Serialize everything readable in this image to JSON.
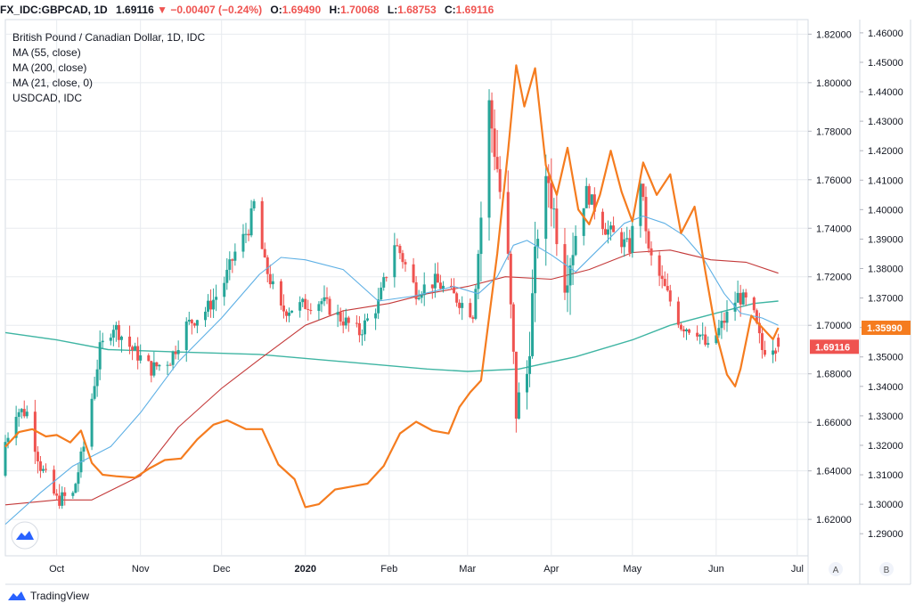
{
  "header": {
    "symbol": "FX_IDC:GBPCAD, 1D",
    "last": "1.69116",
    "change": "−0.00407 (−0.24%)",
    "o_label": "O:",
    "o_value": "1.69490",
    "h_label": "H:",
    "h_value": "1.70068",
    "l_label": "L:",
    "l_value": "1.68753",
    "c_label": "C:",
    "c_value": "1.69116"
  },
  "legend": [
    "British Pound / Canadian Dollar, 1D, IDC",
    "MA (55, close)",
    "MA (200, close)",
    "MA (21, close, 0)",
    "USDCAD, IDC"
  ],
  "footer": {
    "brand": "TradingView"
  },
  "axis_buttons": {
    "left": "A",
    "right": "B"
  },
  "colors": {
    "up": "#26a69a",
    "down": "#ef5350",
    "ma55": "#5eb0e5",
    "ma200": "#c43a3a",
    "ma21": "#3fb5a3",
    "usdcad": "#f57c1f",
    "grid": "#e8ebef",
    "last_tag": "#ef5350",
    "usdcad_tag": "#f57c1f"
  },
  "chart_data": {
    "type": "candlestick",
    "title": "British Pound / Canadian Dollar, 1D, IDC",
    "x_tick_labels": [
      "Oct",
      "Nov",
      "Dec",
      "2020",
      "Feb",
      "Mar",
      "Apr",
      "May",
      "Jun",
      "Jul"
    ],
    "x_tick_dates": [
      "2019-10-01",
      "2019-11-01",
      "2019-12-01",
      "2020-01-01",
      "2020-02-01",
      "2020-03-01",
      "2020-04-01",
      "2020-05-01",
      "2020-06-01",
      "2020-07-01"
    ],
    "x_range": [
      "2019-09-12",
      "2020-07-05"
    ],
    "y_axis_A": {
      "ticks": [
        "1.62000",
        "1.64000",
        "1.66000",
        "1.68000",
        "1.70000",
        "1.72000",
        "1.74000",
        "1.76000",
        "1.78000",
        "1.80000",
        "1.82000"
      ],
      "ylim": [
        1.605,
        1.826
      ]
    },
    "y_axis_B": {
      "ticks": [
        "1.29000",
        "1.30000",
        "1.31000",
        "1.32000",
        "1.33000",
        "1.34000",
        "1.35000",
        "1.36000",
        "1.37000",
        "1.38000",
        "1.39000",
        "1.40000",
        "1.41000",
        "1.42000",
        "1.43000",
        "1.44000",
        "1.45000",
        "1.46000"
      ],
      "ylim": [
        1.2825,
        1.4645
      ]
    },
    "last_price_tag": "1.69116",
    "usdcad_last_tag": "1.35990",
    "ohlc_keypoints": [
      [
        "2019-09-12",
        1.638,
        1.652
      ],
      [
        "2019-09-16",
        1.645,
        1.665
      ],
      [
        "2019-09-20",
        1.66,
        1.664
      ],
      [
        "2019-09-25",
        1.655,
        1.642
      ],
      [
        "2019-10-01",
        1.633,
        1.628
      ],
      [
        "2019-10-07",
        1.629,
        1.63
      ],
      [
        "2019-10-11",
        1.642,
        1.65
      ],
      [
        "2019-10-17",
        1.658,
        1.69
      ],
      [
        "2019-10-22",
        1.692,
        1.7
      ],
      [
        "2019-10-29",
        1.695,
        1.69
      ],
      [
        "2019-11-05",
        1.688,
        1.682
      ],
      [
        "2019-11-12",
        1.684,
        1.686
      ],
      [
        "2019-11-18",
        1.693,
        1.7
      ],
      [
        "2019-11-25",
        1.702,
        1.706
      ],
      [
        "2019-12-01",
        1.71,
        1.715
      ],
      [
        "2019-12-06",
        1.725,
        1.73
      ],
      [
        "2019-12-11",
        1.735,
        1.74
      ],
      [
        "2019-12-13",
        1.755,
        1.75
      ],
      [
        "2019-12-17",
        1.738,
        1.725
      ],
      [
        "2019-12-23",
        1.712,
        1.706
      ],
      [
        "2019-12-30",
        1.703,
        1.708
      ],
      [
        "2020-01-07",
        1.713,
        1.71
      ],
      [
        "2020-01-14",
        1.705,
        1.703
      ],
      [
        "2020-01-21",
        1.702,
        1.697
      ],
      [
        "2020-01-28",
        1.701,
        1.709
      ],
      [
        "2020-02-03",
        1.722,
        1.734
      ],
      [
        "2020-02-05",
        1.738,
        1.73
      ],
      [
        "2020-02-11",
        1.718,
        1.714
      ],
      [
        "2020-02-18",
        1.718,
        1.718
      ],
      [
        "2020-02-25",
        1.716,
        1.712
      ],
      [
        "2020-03-03",
        1.713,
        1.705
      ],
      [
        "2020-03-05",
        1.7,
        1.73
      ],
      [
        "2020-03-09",
        1.74,
        1.79
      ],
      [
        "2020-03-12",
        1.775,
        1.765
      ],
      [
        "2020-03-16",
        1.748,
        1.725
      ],
      [
        "2020-03-19",
        1.69,
        1.665
      ],
      [
        "2020-03-23",
        1.674,
        1.68
      ],
      [
        "2020-03-27",
        1.7,
        1.74
      ],
      [
        "2020-03-31",
        1.755,
        1.76
      ],
      [
        "2020-04-06",
        1.735,
        1.72
      ],
      [
        "2020-04-14",
        1.74,
        1.755
      ],
      [
        "2020-04-21",
        1.745,
        1.74
      ],
      [
        "2020-04-30",
        1.738,
        1.732
      ],
      [
        "2020-05-04",
        1.738,
        1.76
      ],
      [
        "2020-05-07",
        1.75,
        1.73
      ],
      [
        "2020-05-13",
        1.725,
        1.715
      ],
      [
        "2020-05-19",
        1.705,
        1.7
      ],
      [
        "2020-05-25",
        1.702,
        1.698
      ],
      [
        "2020-05-29",
        1.688,
        1.69
      ],
      [
        "2020-06-04",
        1.7,
        1.702
      ],
      [
        "2020-06-09",
        1.705,
        1.712
      ],
      [
        "2020-06-14",
        1.713,
        1.708
      ],
      [
        "2020-06-18",
        1.7,
        1.69
      ],
      [
        "2020-06-22",
        1.686,
        1.692
      ],
      [
        "2020-06-24",
        1.6949,
        1.69116
      ]
    ],
    "series": [
      {
        "name": "MA (55, close)",
        "points": [
          [
            "2019-09-12",
            1.618
          ],
          [
            "2019-09-25",
            1.631
          ],
          [
            "2019-10-07",
            1.642
          ],
          [
            "2019-10-21",
            1.65
          ],
          [
            "2019-11-01",
            1.664
          ],
          [
            "2019-11-15",
            1.685
          ],
          [
            "2019-12-01",
            1.703
          ],
          [
            "2019-12-15",
            1.721
          ],
          [
            "2019-12-23",
            1.728
          ],
          [
            "2020-01-01",
            1.727
          ],
          [
            "2020-01-15",
            1.723
          ],
          [
            "2020-01-28",
            1.71
          ],
          [
            "2020-02-10",
            1.712
          ],
          [
            "2020-02-25",
            1.716
          ],
          [
            "2020-03-05",
            1.713
          ],
          [
            "2020-03-12",
            1.72
          ],
          [
            "2020-03-18",
            1.733
          ],
          [
            "2020-03-23",
            1.735
          ],
          [
            "2020-04-01",
            1.729
          ],
          [
            "2020-04-10",
            1.722
          ],
          [
            "2020-04-20",
            1.733
          ],
          [
            "2020-04-28",
            1.742
          ],
          [
            "2020-05-05",
            1.745
          ],
          [
            "2020-05-13",
            1.742
          ],
          [
            "2020-05-20",
            1.737
          ],
          [
            "2020-05-27",
            1.728
          ],
          [
            "2020-06-04",
            1.713
          ],
          [
            "2020-06-10",
            1.705
          ],
          [
            "2020-06-18",
            1.703
          ],
          [
            "2020-06-24",
            1.7
          ]
        ]
      },
      {
        "name": "MA (200, close)",
        "points": [
          [
            "2019-09-12",
            1.626
          ],
          [
            "2019-10-01",
            1.628
          ],
          [
            "2019-10-14",
            1.628
          ],
          [
            "2019-11-01",
            1.638
          ],
          [
            "2019-11-15",
            1.658
          ],
          [
            "2019-12-01",
            1.674
          ],
          [
            "2019-12-15",
            1.686
          ],
          [
            "2020-01-01",
            1.7
          ],
          [
            "2020-01-15",
            1.706
          ],
          [
            "2020-02-01",
            1.709
          ],
          [
            "2020-02-15",
            1.713
          ],
          [
            "2020-03-01",
            1.716
          ],
          [
            "2020-03-15",
            1.72
          ],
          [
            "2020-04-01",
            1.719
          ],
          [
            "2020-04-15",
            1.723
          ],
          [
            "2020-05-01",
            1.73
          ],
          [
            "2020-05-15",
            1.731
          ],
          [
            "2020-05-30",
            1.727
          ],
          [
            "2020-06-12",
            1.726
          ],
          [
            "2020-06-24",
            1.7215
          ]
        ]
      },
      {
        "name": "MA (21, close, 0)",
        "points": [
          [
            "2019-09-12",
            1.697
          ],
          [
            "2019-10-01",
            1.694
          ],
          [
            "2019-10-20",
            1.69
          ],
          [
            "2019-11-15",
            1.689
          ],
          [
            "2019-12-15",
            1.688
          ],
          [
            "2020-01-15",
            1.685
          ],
          [
            "2020-02-15",
            1.682
          ],
          [
            "2020-03-01",
            1.681
          ],
          [
            "2020-03-20",
            1.682
          ],
          [
            "2020-04-10",
            1.687
          ],
          [
            "2020-05-01",
            1.694
          ],
          [
            "2020-05-15",
            1.7
          ],
          [
            "2020-06-01",
            1.705
          ],
          [
            "2020-06-15",
            1.709
          ],
          [
            "2020-06-24",
            1.71
          ]
        ]
      },
      {
        "name": "USDCAD, IDC",
        "axis": "B",
        "points": [
          [
            "2019-09-12",
            1.3195
          ],
          [
            "2019-09-17",
            1.3245
          ],
          [
            "2019-09-22",
            1.3255
          ],
          [
            "2019-09-27",
            1.323
          ],
          [
            "2019-10-01",
            1.3235
          ],
          [
            "2019-10-06",
            1.321
          ],
          [
            "2019-10-10",
            1.325
          ],
          [
            "2019-10-14",
            1.314
          ],
          [
            "2019-10-18",
            1.31
          ],
          [
            "2019-10-23",
            1.3095
          ],
          [
            "2019-10-30",
            1.309
          ],
          [
            "2019-11-04",
            1.312
          ],
          [
            "2019-11-10",
            1.315
          ],
          [
            "2019-11-16",
            1.3155
          ],
          [
            "2019-11-22",
            1.322
          ],
          [
            "2019-11-28",
            1.327
          ],
          [
            "2019-12-03",
            1.3285
          ],
          [
            "2019-12-10",
            1.3255
          ],
          [
            "2019-12-16",
            1.3255
          ],
          [
            "2019-12-22",
            1.3135
          ],
          [
            "2019-12-28",
            1.3085
          ],
          [
            "2020-01-01",
            1.299
          ],
          [
            "2020-01-06",
            1.3
          ],
          [
            "2020-01-12",
            1.305
          ],
          [
            "2020-01-18",
            1.306
          ],
          [
            "2020-01-24",
            1.307
          ],
          [
            "2020-01-30",
            1.313
          ],
          [
            "2020-02-05",
            1.324
          ],
          [
            "2020-02-11",
            1.328
          ],
          [
            "2020-02-17",
            1.325
          ],
          [
            "2020-02-23",
            1.324
          ],
          [
            "2020-02-27",
            1.333
          ],
          [
            "2020-03-02",
            1.338
          ],
          [
            "2020-03-06",
            1.342
          ],
          [
            "2020-03-12",
            1.385
          ],
          [
            "2020-03-16",
            1.42
          ],
          [
            "2020-03-19",
            1.449
          ],
          [
            "2020-03-22",
            1.435
          ],
          [
            "2020-03-26",
            1.448
          ],
          [
            "2020-03-30",
            1.415
          ],
          [
            "2020-04-03",
            1.405
          ],
          [
            "2020-04-07",
            1.421
          ],
          [
            "2020-04-11",
            1.4
          ],
          [
            "2020-04-15",
            1.395
          ],
          [
            "2020-04-19",
            1.405
          ],
          [
            "2020-04-23",
            1.42
          ],
          [
            "2020-04-27",
            1.406
          ],
          [
            "2020-05-01",
            1.396
          ],
          [
            "2020-05-05",
            1.416
          ],
          [
            "2020-05-10",
            1.405
          ],
          [
            "2020-05-15",
            1.412
          ],
          [
            "2020-05-19",
            1.392
          ],
          [
            "2020-05-24",
            1.401
          ],
          [
            "2020-05-28",
            1.379
          ],
          [
            "2020-06-01",
            1.358
          ],
          [
            "2020-06-05",
            1.344
          ],
          [
            "2020-06-08",
            1.34
          ],
          [
            "2020-06-10",
            1.346
          ],
          [
            "2020-06-14",
            1.364
          ],
          [
            "2020-06-18",
            1.36
          ],
          [
            "2020-06-22",
            1.356
          ],
          [
            "2020-06-24",
            1.3599
          ]
        ]
      }
    ]
  }
}
